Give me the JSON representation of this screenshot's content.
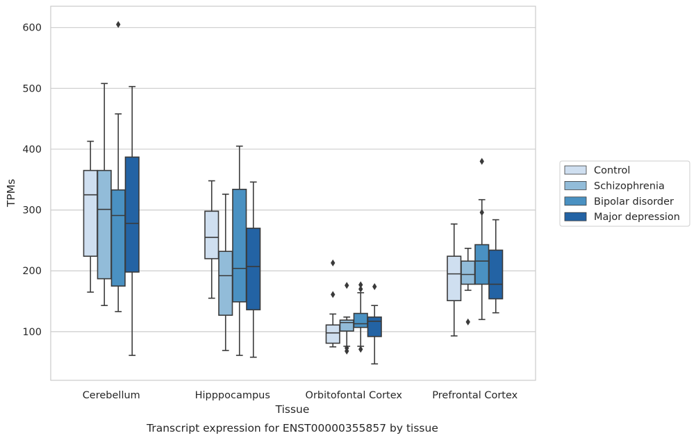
{
  "chart_data": {
    "type": "box",
    "title": "",
    "caption": "Transcript expression for ENST00000355857 by tissue",
    "xlabel": "Tissue",
    "ylabel": "TPMs",
    "ylim": [
      20,
      635
    ],
    "yticks": [
      100,
      200,
      300,
      400,
      500,
      600
    ],
    "grid": "horizontal",
    "legend_position": "right",
    "categories": [
      "Cerebellum",
      "Hipppocampus",
      "Orbitofontal Cortex",
      "Prefrontal Cortex"
    ],
    "colors": {
      "Control": "#cfdff0",
      "Schizophrenia": "#92bcd9",
      "Bipolar disorder": "#4a91c2",
      "Major depression": "#2363a4",
      "line": "#3a3a3a",
      "grid": "#cccccc"
    },
    "series": [
      {
        "name": "Control",
        "boxes": [
          {
            "whislo": 165,
            "q1": 224,
            "med": 325,
            "q3": 365,
            "whishi": 413,
            "fliers": []
          },
          {
            "whislo": 155,
            "q1": 220,
            "med": 255,
            "q3": 298,
            "whishi": 348,
            "fliers": []
          },
          {
            "whislo": 75,
            "q1": 81,
            "med": 98,
            "q3": 111,
            "whishi": 129,
            "fliers": [
              213,
              161
            ]
          },
          {
            "whislo": 93,
            "q1": 151,
            "med": 195,
            "q3": 224,
            "whishi": 277,
            "fliers": []
          }
        ]
      },
      {
        "name": "Schizophrenia",
        "boxes": [
          {
            "whislo": 143,
            "q1": 187,
            "med": 301,
            "q3": 365,
            "whishi": 508,
            "fliers": []
          },
          {
            "whislo": 69,
            "q1": 127,
            "med": 192,
            "q3": 232,
            "whishi": 326,
            "fliers": []
          },
          {
            "whislo": 76,
            "q1": 101,
            "med": 115,
            "q3": 119,
            "whishi": 124,
            "fliers": [
              176,
              73,
              68
            ]
          },
          {
            "whislo": 168,
            "q1": 178,
            "med": 194,
            "q3": 216,
            "whishi": 237,
            "fliers": [
              116
            ]
          }
        ]
      },
      {
        "name": "Bipolar disorder",
        "boxes": [
          {
            "whislo": 133,
            "q1": 175,
            "med": 291,
            "q3": 333,
            "whishi": 458,
            "fliers": [
              605
            ]
          },
          {
            "whislo": 61,
            "q1": 149,
            "med": 204,
            "q3": 334,
            "whishi": 405,
            "fliers": []
          },
          {
            "whislo": 76,
            "q1": 107,
            "med": 113,
            "q3": 130,
            "whishi": 164,
            "fliers": [
              177,
              170,
              71
            ]
          },
          {
            "whislo": 120,
            "q1": 178,
            "med": 216,
            "q3": 243,
            "whishi": 317,
            "fliers": [
              380,
              296
            ]
          }
        ]
      },
      {
        "name": "Major depression",
        "boxes": [
          {
            "whislo": 61,
            "q1": 198,
            "med": 278,
            "q3": 387,
            "whishi": 503,
            "fliers": []
          },
          {
            "whislo": 58,
            "q1": 136,
            "med": 207,
            "q3": 270,
            "whishi": 346,
            "fliers": []
          },
          {
            "whislo": 47,
            "q1": 92,
            "med": 117,
            "q3": 124,
            "whishi": 143,
            "fliers": [
              174
            ]
          },
          {
            "whislo": 131,
            "q1": 154,
            "med": 178,
            "q3": 234,
            "whishi": 284,
            "fliers": []
          }
        ]
      }
    ]
  }
}
